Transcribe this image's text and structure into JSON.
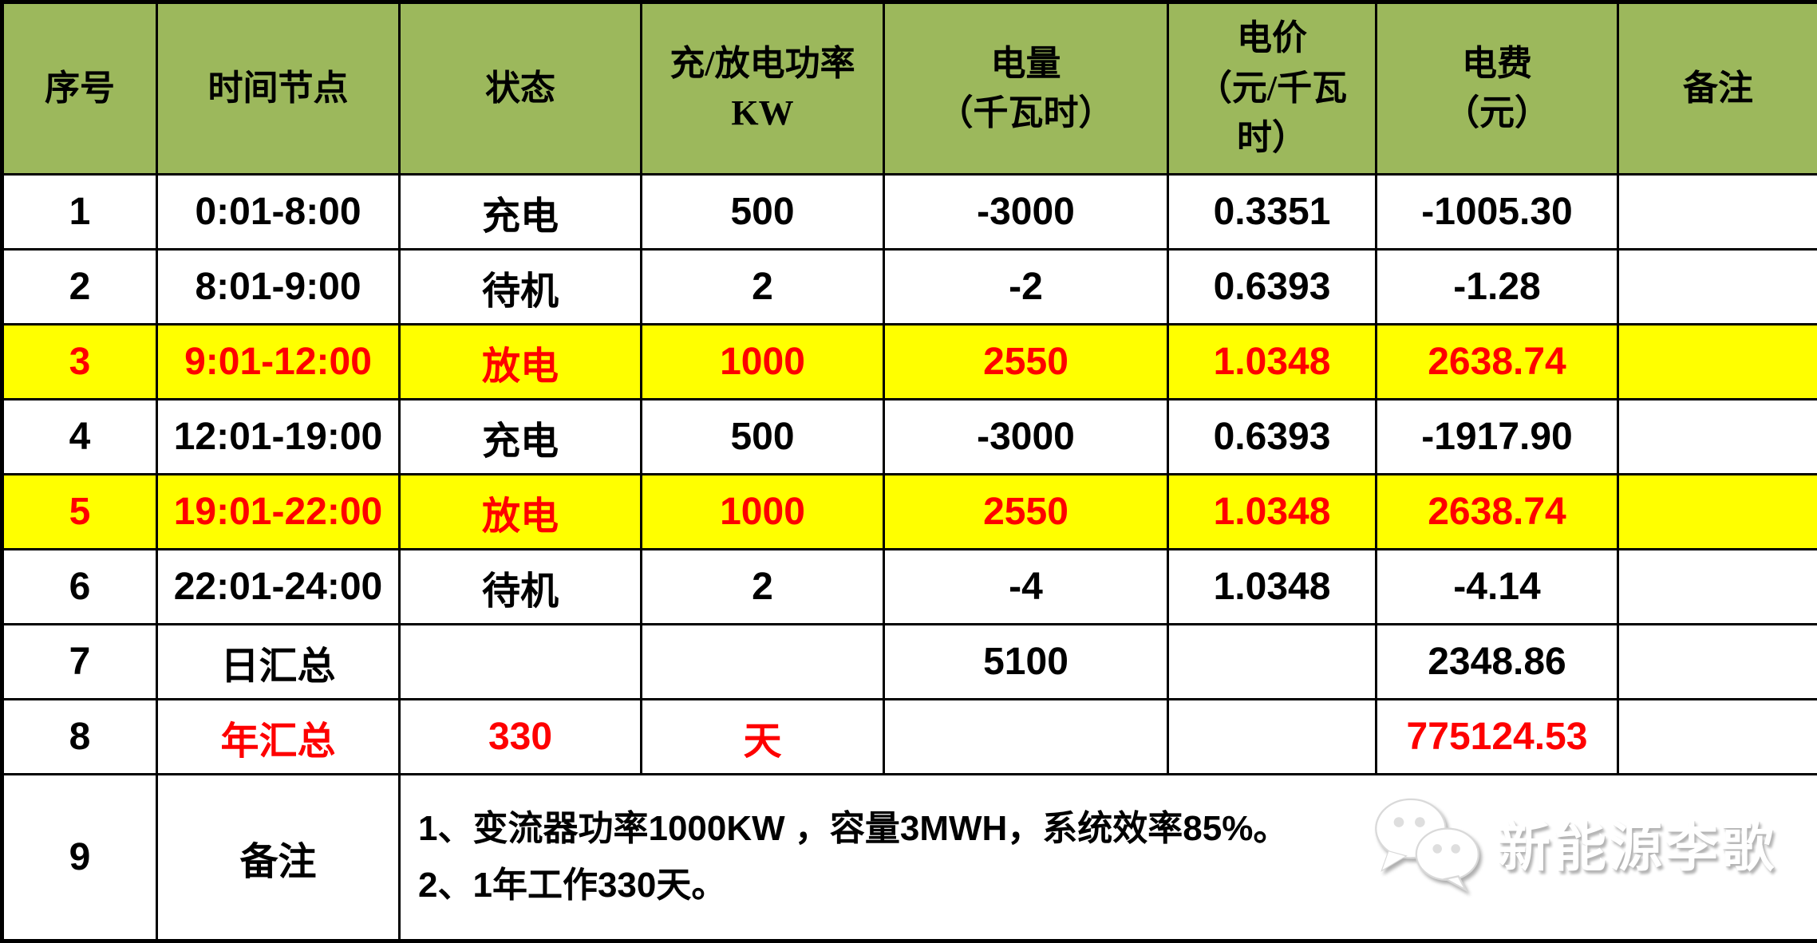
{
  "colors": {
    "header_bg": "#9CB85C",
    "highlight_bg": "#FFFF00",
    "red_text": "#FE0000",
    "border": "#000000",
    "body_text": "#000000",
    "watermark_shadow": "#B3B3B3"
  },
  "table": {
    "header": [
      {
        "lines": [
          "序号"
        ]
      },
      {
        "lines": [
          "时间节点"
        ]
      },
      {
        "lines": [
          "状态"
        ]
      },
      {
        "lines": [
          "充/放电功率",
          "KW"
        ]
      },
      {
        "lines": [
          "电量",
          "（千瓦时）"
        ]
      },
      {
        "lines": [
          "电价",
          "（元/千瓦",
          "时）"
        ]
      },
      {
        "lines": [
          "电费",
          "（元）"
        ]
      },
      {
        "lines": [
          "备注"
        ]
      }
    ],
    "rows": [
      {
        "highlight": false,
        "cells": [
          {
            "t": "1"
          },
          {
            "t": "0:01-8:00"
          },
          {
            "t": "充电"
          },
          {
            "t": "500"
          },
          {
            "t": "-3000"
          },
          {
            "t": "0.3351"
          },
          {
            "t": "-1005.30"
          },
          {
            "t": ""
          }
        ]
      },
      {
        "highlight": false,
        "cells": [
          {
            "t": "2"
          },
          {
            "t": "8:01-9:00"
          },
          {
            "t": "待机"
          },
          {
            "t": "2"
          },
          {
            "t": "-2"
          },
          {
            "t": "0.6393"
          },
          {
            "t": "-1.28"
          },
          {
            "t": ""
          }
        ]
      },
      {
        "highlight": true,
        "cells": [
          {
            "t": "3",
            "red": true
          },
          {
            "t": "9:01-12:00",
            "red": true
          },
          {
            "t": "放电",
            "red": true
          },
          {
            "t": "1000",
            "red": true
          },
          {
            "t": "2550",
            "red": true
          },
          {
            "t": "1.0348",
            "red": true
          },
          {
            "t": "2638.74",
            "red": true
          },
          {
            "t": ""
          }
        ]
      },
      {
        "highlight": false,
        "cells": [
          {
            "t": "4"
          },
          {
            "t": "12:01-19:00"
          },
          {
            "t": "充电"
          },
          {
            "t": "500"
          },
          {
            "t": "-3000"
          },
          {
            "t": "0.6393"
          },
          {
            "t": "-1917.90"
          },
          {
            "t": ""
          }
        ]
      },
      {
        "highlight": true,
        "cells": [
          {
            "t": "5",
            "red": true
          },
          {
            "t": "19:01-22:00",
            "red": true
          },
          {
            "t": "放电",
            "red": true
          },
          {
            "t": "1000",
            "red": true
          },
          {
            "t": "2550",
            "red": true
          },
          {
            "t": "1.0348",
            "red": true
          },
          {
            "t": "2638.74",
            "red": true
          },
          {
            "t": ""
          }
        ]
      },
      {
        "highlight": false,
        "cells": [
          {
            "t": "6"
          },
          {
            "t": "22:01-24:00"
          },
          {
            "t": "待机"
          },
          {
            "t": "2"
          },
          {
            "t": "-4"
          },
          {
            "t": "1.0348"
          },
          {
            "t": "-4.14"
          },
          {
            "t": ""
          }
        ]
      },
      {
        "highlight": false,
        "cells": [
          {
            "t": "7"
          },
          {
            "t": "日汇总"
          },
          {
            "t": ""
          },
          {
            "t": ""
          },
          {
            "t": "5100"
          },
          {
            "t": ""
          },
          {
            "t": "2348.86"
          },
          {
            "t": ""
          }
        ]
      },
      {
        "highlight": false,
        "cells": [
          {
            "t": "8"
          },
          {
            "t": "年汇总",
            "red": true
          },
          {
            "t": "330",
            "red": true
          },
          {
            "t": "天",
            "red": true
          },
          {
            "t": ""
          },
          {
            "t": ""
          },
          {
            "t": "775124.53",
            "red": true
          },
          {
            "t": ""
          }
        ]
      }
    ],
    "notes_row": {
      "serial": "9",
      "label": "备注",
      "lines": [
        "1、变流器功率1000KW ，容量3MWH，系统效率85%。",
        "2、1年工作330天。"
      ]
    }
  },
  "watermark": {
    "icon": "wechat-icon",
    "text": "新能源李歌"
  }
}
